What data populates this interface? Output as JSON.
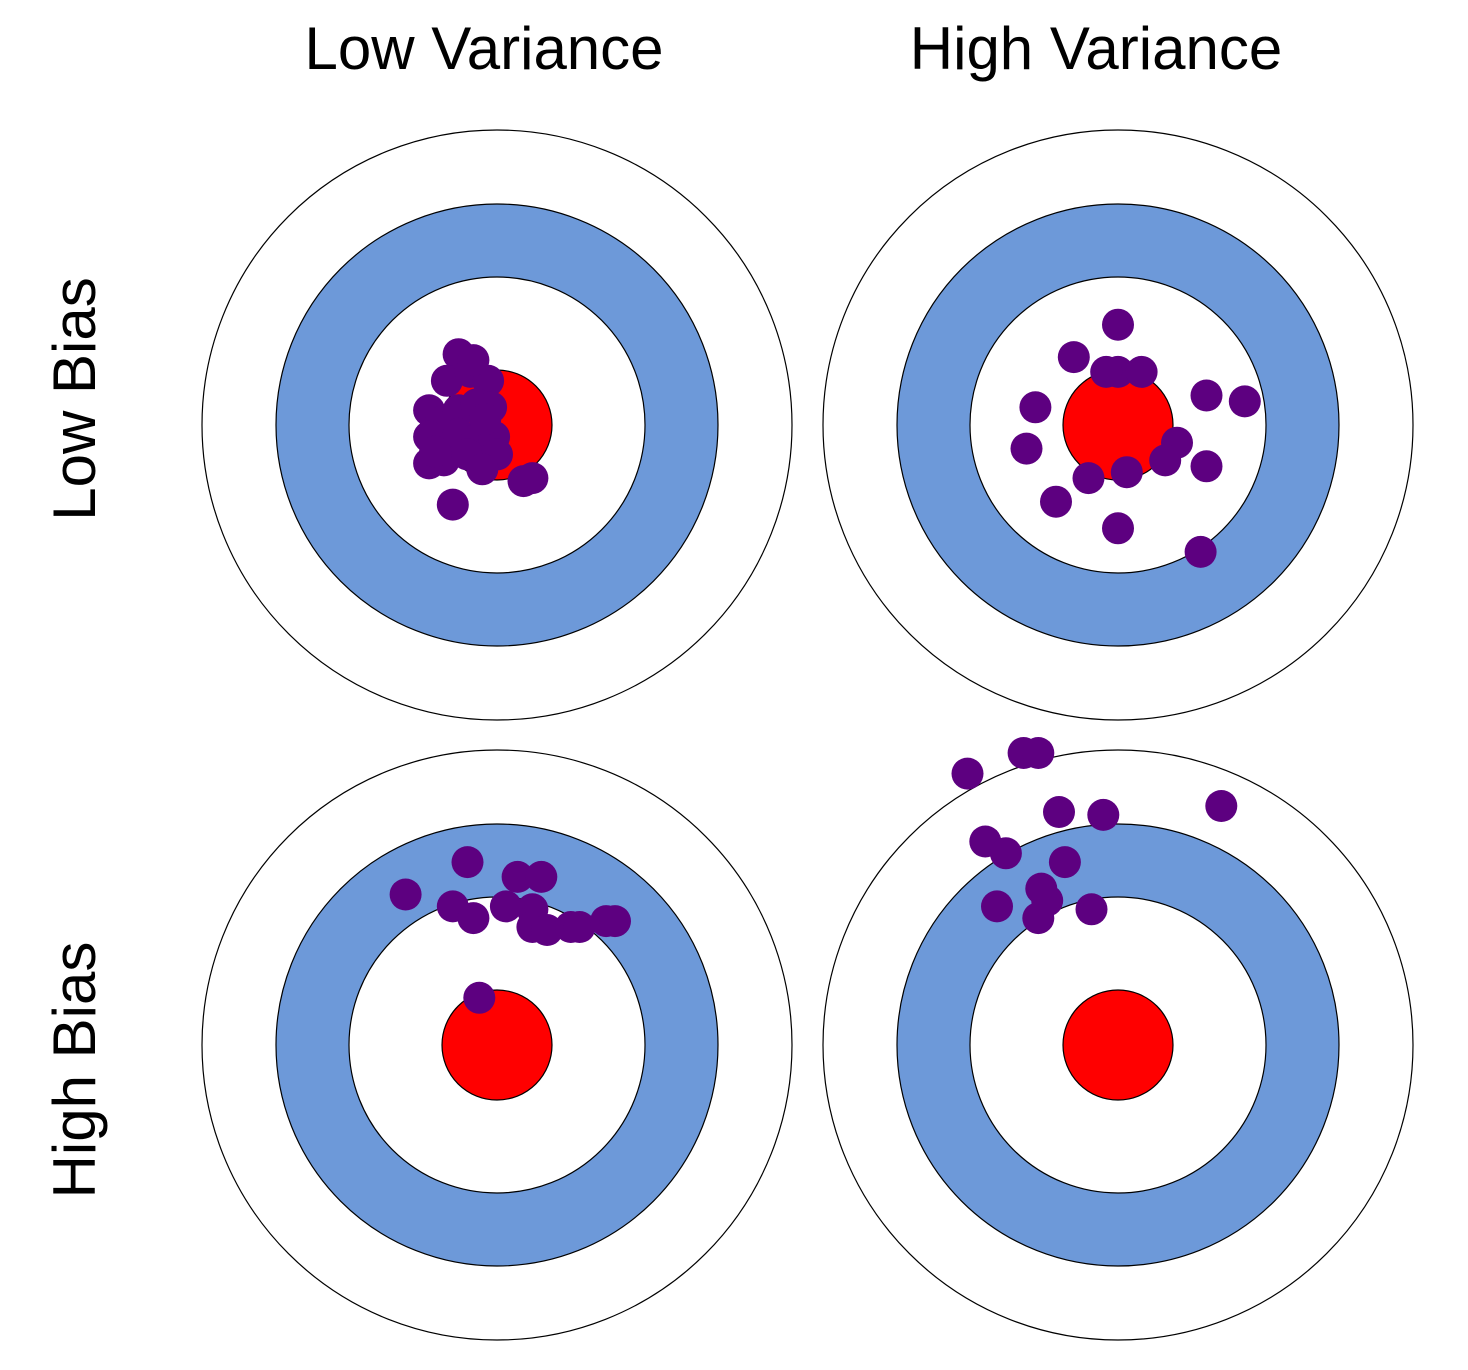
{
  "columns": [
    {
      "label": "Low Variance"
    },
    {
      "label": "High Variance"
    }
  ],
  "rows": [
    {
      "label": "Low Bias"
    },
    {
      "label": "High Bias"
    }
  ],
  "colors": {
    "bullseye": "#ff0000",
    "band": "#6d99d9",
    "ring_fill": "#ffffff",
    "outline": "#000000",
    "shot": "#5d0080"
  },
  "targets": [
    {
      "name": "low-bias-low-variance",
      "shots": [
        [
          -0.13,
          -0.24
        ],
        [
          -0.17,
          -0.15
        ],
        [
          -0.09,
          -0.18
        ],
        [
          -0.03,
          -0.15
        ],
        [
          -0.23,
          -0.05
        ],
        [
          -0.19,
          -0.01
        ],
        [
          -0.13,
          -0.05
        ],
        [
          -0.07,
          -0.07
        ],
        [
          -0.02,
          -0.06
        ],
        [
          -0.23,
          0.04
        ],
        [
          -0.13,
          0.03
        ],
        [
          -0.07,
          0.05
        ],
        [
          -0.01,
          0.04
        ],
        [
          -0.23,
          0.13
        ],
        [
          -0.18,
          0.12
        ],
        [
          -0.1,
          0.1
        ],
        [
          0.0,
          0.1
        ],
        [
          -0.05,
          0.15
        ],
        [
          -0.15,
          0.27
        ],
        [
          0.09,
          0.19
        ],
        [
          0.12,
          0.18
        ],
        [
          -0.21,
          0.09
        ],
        [
          -0.08,
          -0.22
        ],
        [
          -0.04,
          -0.02
        ]
      ]
    },
    {
      "name": "low-bias-high-variance",
      "shots": [
        [
          0.0,
          -0.34
        ],
        [
          -0.15,
          -0.23
        ],
        [
          0.0,
          -0.18
        ],
        [
          0.08,
          -0.18
        ],
        [
          -0.04,
          -0.18
        ],
        [
          0.3,
          -0.1
        ],
        [
          0.43,
          -0.08
        ],
        [
          -0.28,
          -0.06
        ],
        [
          -0.31,
          0.08
        ],
        [
          0.2,
          0.06
        ],
        [
          0.16,
          0.12
        ],
        [
          0.3,
          0.14
        ],
        [
          0.03,
          0.16
        ],
        [
          -0.1,
          0.18
        ],
        [
          -0.21,
          0.26
        ],
        [
          0.0,
          0.35
        ],
        [
          0.28,
          0.43
        ]
      ]
    },
    {
      "name": "high-bias-low-variance",
      "shots": [
        [
          -0.1,
          -0.62
        ],
        [
          0.07,
          -0.57
        ],
        [
          0.15,
          -0.57
        ],
        [
          -0.31,
          -0.51
        ],
        [
          -0.15,
          -0.47
        ],
        [
          -0.08,
          -0.43
        ],
        [
          0.03,
          -0.47
        ],
        [
          0.12,
          -0.46
        ],
        [
          0.12,
          -0.4
        ],
        [
          0.17,
          -0.39
        ],
        [
          0.25,
          -0.4
        ],
        [
          0.28,
          -0.4
        ],
        [
          0.37,
          -0.42
        ],
        [
          0.4,
          -0.42
        ],
        [
          -0.06,
          -0.16
        ]
      ]
    },
    {
      "name": "high-bias-high-variance",
      "shots": [
        [
          -0.51,
          -0.92
        ],
        [
          -0.32,
          -0.99
        ],
        [
          -0.27,
          -0.99
        ],
        [
          -0.2,
          -0.79
        ],
        [
          -0.05,
          -0.78
        ],
        [
          0.35,
          -0.81
        ],
        [
          -0.45,
          -0.69
        ],
        [
          -0.38,
          -0.65
        ],
        [
          -0.18,
          -0.62
        ],
        [
          -0.24,
          -0.49
        ],
        [
          -0.27,
          -0.43
        ],
        [
          -0.41,
          -0.47
        ],
        [
          -0.09,
          -0.46
        ],
        [
          -0.26,
          -0.53
        ]
      ]
    }
  ]
}
